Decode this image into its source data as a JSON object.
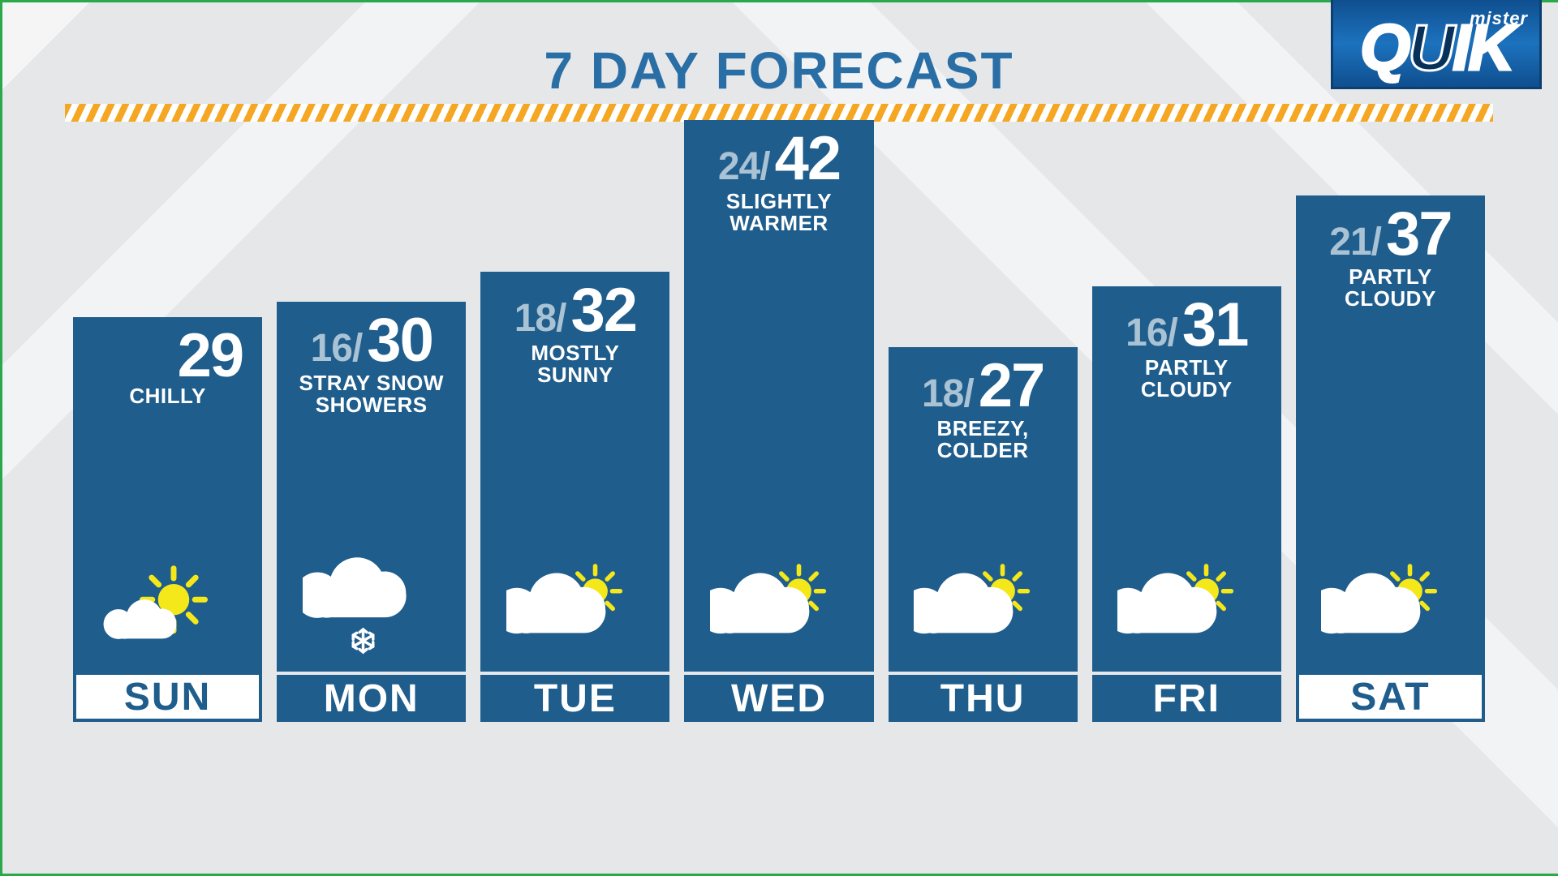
{
  "title": "7 DAY FORECAST",
  "logo": {
    "line1": "mister",
    "line2_pre": "Q",
    "line2_u": "U",
    "line2_post": "IK"
  },
  "chart": {
    "bar_color": "#1f5d8c",
    "low_color": "#a9c2d4",
    "high_color": "#ffffff",
    "weekend_bg": "#ffffff",
    "weekend_fg": "#1f5d8c",
    "background": "#e6e7e9",
    "stripe_colors": [
      "#f5a623",
      "#ffffff"
    ],
    "title_color": "#2a6ea6",
    "title_fontsize": 64,
    "label_fontsize": 48,
    "cond_fontsize": 26,
    "low_fontsize": 48,
    "high_fontsize": 76,
    "bar_min_height": 400,
    "bar_max_height": 680,
    "high_range": [
      27,
      42
    ],
    "days": [
      {
        "day": "SUN",
        "low": null,
        "high": 29,
        "cond": "CHILLY",
        "icon": "mostly_sunny",
        "weekend": true
      },
      {
        "day": "MON",
        "low": 16,
        "high": 30,
        "cond": "STRAY SNOW\nSHOWERS",
        "icon": "snow_showers",
        "weekend": false
      },
      {
        "day": "TUE",
        "low": 18,
        "high": 32,
        "cond": "MOSTLY\nSUNNY",
        "icon": "partly_cloudy",
        "weekend": false
      },
      {
        "day": "WED",
        "low": 24,
        "high": 42,
        "cond": "SLIGHTLY\nWARMER",
        "icon": "partly_cloudy",
        "weekend": false
      },
      {
        "day": "THU",
        "low": 18,
        "high": 27,
        "cond": "BREEZY,\nCOLDER",
        "icon": "partly_cloudy",
        "weekend": false
      },
      {
        "day": "FRI",
        "low": 16,
        "high": 31,
        "cond": "PARTLY\nCLOUDY",
        "icon": "partly_cloudy",
        "weekend": false
      },
      {
        "day": "SAT",
        "low": 21,
        "high": 37,
        "cond": "PARTLY\nCLOUDY",
        "icon": "partly_cloudy",
        "weekend": true
      }
    ]
  }
}
